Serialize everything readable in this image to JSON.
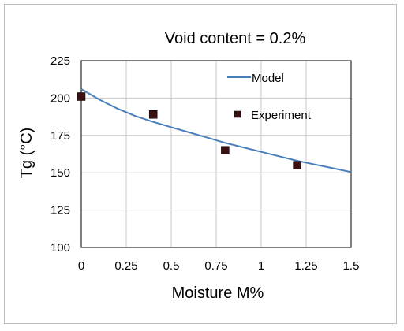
{
  "chart_data": {
    "type": "line",
    "title": "Void content = 0.2%",
    "xlabel": "Moisture M%",
    "ylabel": "Tg (°C)",
    "xlim": [
      0,
      1.5
    ],
    "ylim": [
      100,
      225
    ],
    "x_ticks": [
      "0",
      "0.25",
      "0.5",
      "0.75",
      "1",
      "1.25",
      "1.5"
    ],
    "y_ticks": [
      "100",
      "125",
      "150",
      "175",
      "200",
      "225"
    ],
    "grid": true,
    "legend_position": "top-right",
    "series": [
      {
        "name": "Model",
        "kind": "line",
        "color": "#4a7ebb",
        "x": [
          0,
          0.1,
          0.2,
          0.3,
          0.4,
          0.5,
          0.6,
          0.7,
          0.8,
          0.9,
          1.0,
          1.1,
          1.2,
          1.3,
          1.4,
          1.5
        ],
        "y": [
          206,
          199,
          193,
          188,
          184,
          180.5,
          177,
          173.5,
          170,
          167,
          164,
          161,
          158,
          155.5,
          153,
          150.5
        ]
      },
      {
        "name": "Experiment",
        "kind": "scatter",
        "color": "#3a1010",
        "x": [
          0,
          0.4,
          0.8,
          1.2
        ],
        "y": [
          201,
          189,
          165,
          155
        ]
      }
    ]
  }
}
